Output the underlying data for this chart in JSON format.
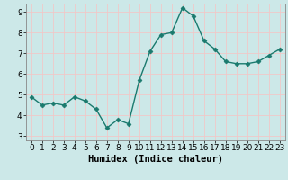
{
  "x": [
    0,
    1,
    2,
    3,
    4,
    5,
    6,
    7,
    8,
    9,
    10,
    11,
    12,
    13,
    14,
    15,
    16,
    17,
    18,
    19,
    20,
    21,
    22,
    23
  ],
  "y": [
    4.9,
    4.5,
    4.6,
    4.5,
    4.9,
    4.7,
    4.3,
    3.4,
    3.8,
    3.6,
    5.7,
    7.1,
    7.9,
    8.0,
    9.2,
    8.8,
    7.6,
    7.2,
    6.6,
    6.5,
    6.5,
    6.6,
    6.9,
    7.2
  ],
  "xlabel": "Humidex (Indice chaleur)",
  "ylim": [
    2.8,
    9.4
  ],
  "xlim": [
    -0.5,
    23.5
  ],
  "yticks": [
    3,
    4,
    5,
    6,
    7,
    8,
    9
  ],
  "xticks": [
    0,
    1,
    2,
    3,
    4,
    5,
    6,
    7,
    8,
    9,
    10,
    11,
    12,
    13,
    14,
    15,
    16,
    17,
    18,
    19,
    20,
    21,
    22,
    23
  ],
  "line_color": "#1a7a6e",
  "marker": "D",
  "marker_size": 2.5,
  "bg_color": "#cce8e8",
  "grid_color_major": "#f0c8c8",
  "grid_color_minor": "#e8e0e0",
  "tick_label_fontsize": 6.5,
  "xlabel_fontsize": 7.5,
  "line_width": 1.0
}
